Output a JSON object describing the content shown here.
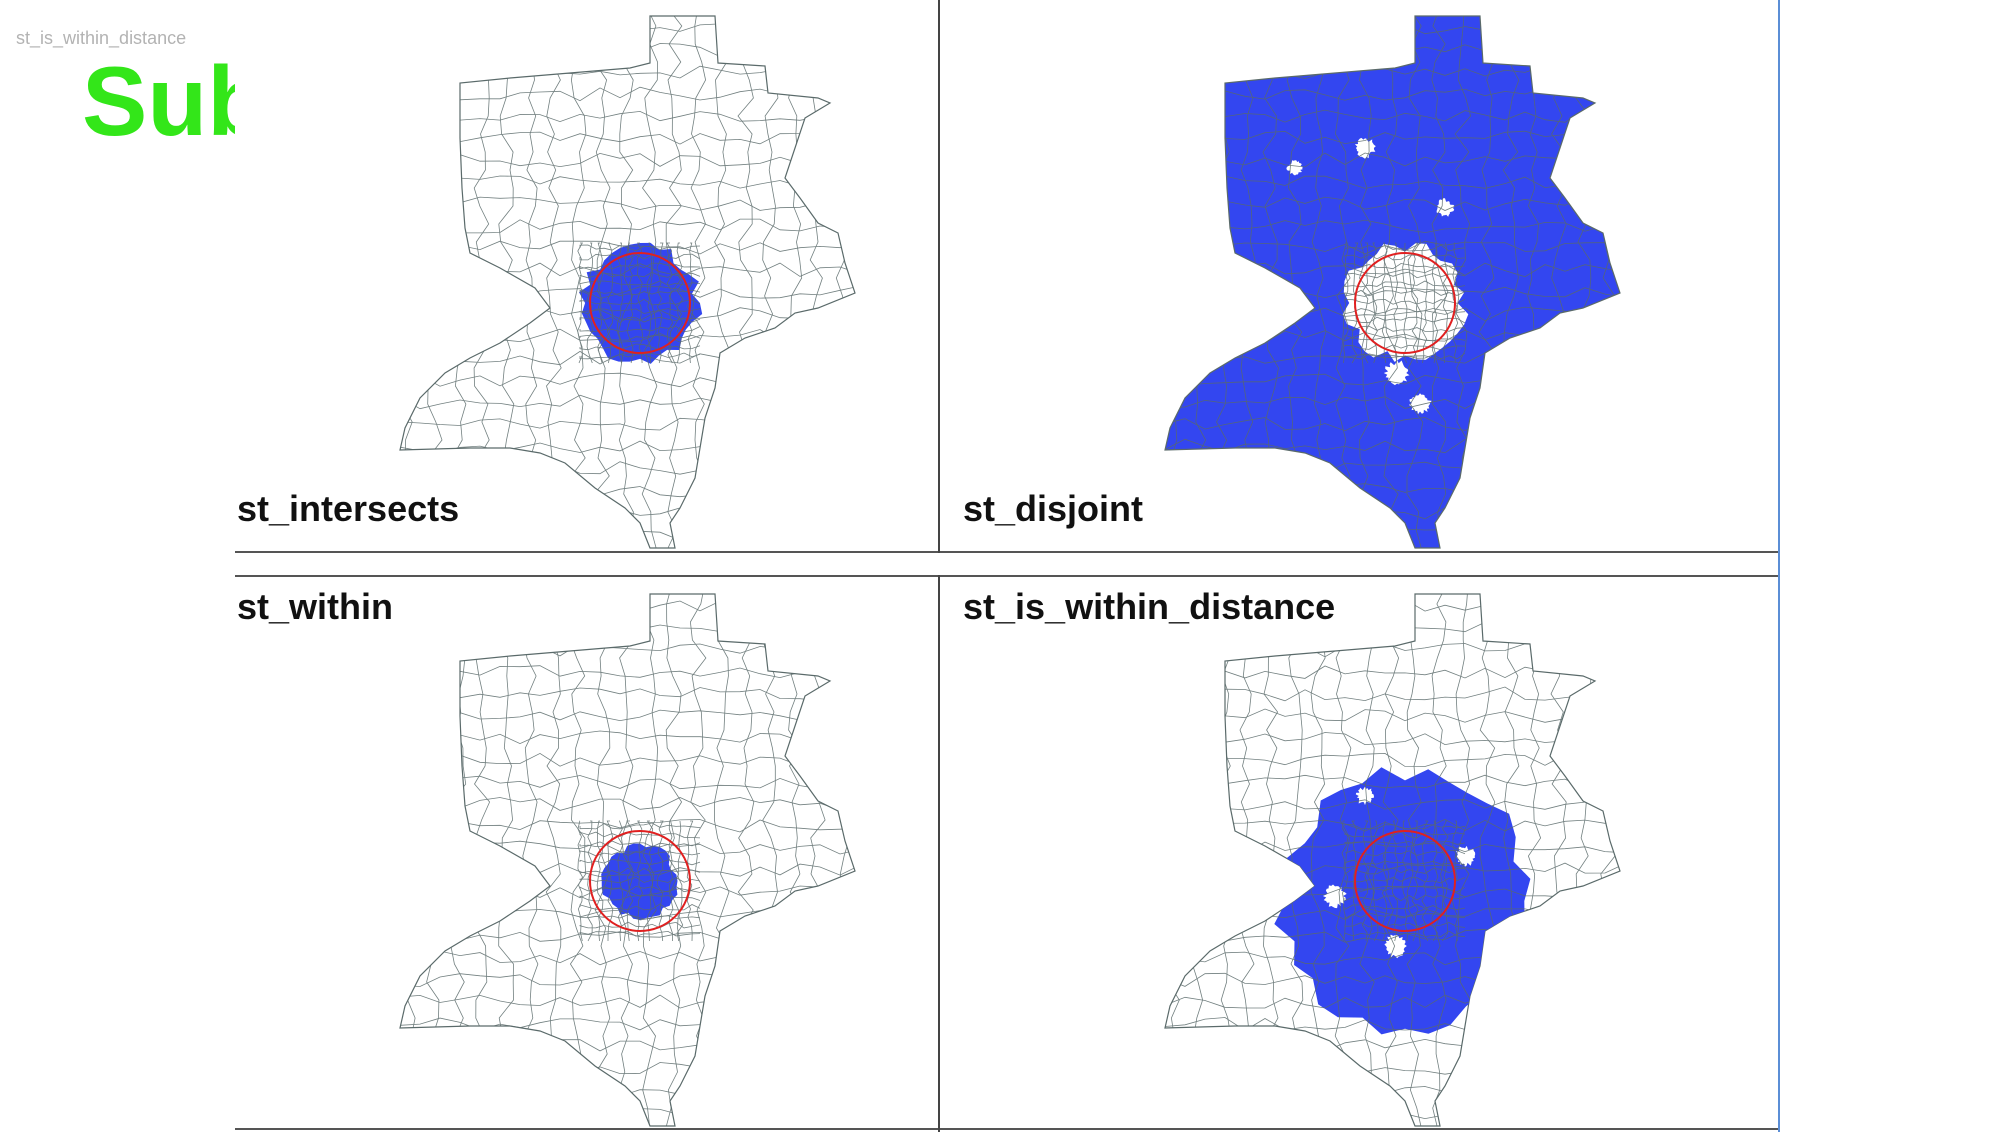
{
  "corner_caption": "st_is_within_distance",
  "slide_title": "Sub",
  "colors": {
    "fill": "#3346f0",
    "buffer_circle": "#e02020",
    "outline": "#5a6a6a",
    "title_green": "#33e619"
  },
  "panels": [
    {
      "label": "st_intersects",
      "highlight": "intersects"
    },
    {
      "label": "st_disjoint",
      "highlight": "disjoint"
    },
    {
      "label": "st_within",
      "highlight": "within"
    },
    {
      "label": "st_is_within_distance",
      "highlight": "distance"
    }
  ]
}
